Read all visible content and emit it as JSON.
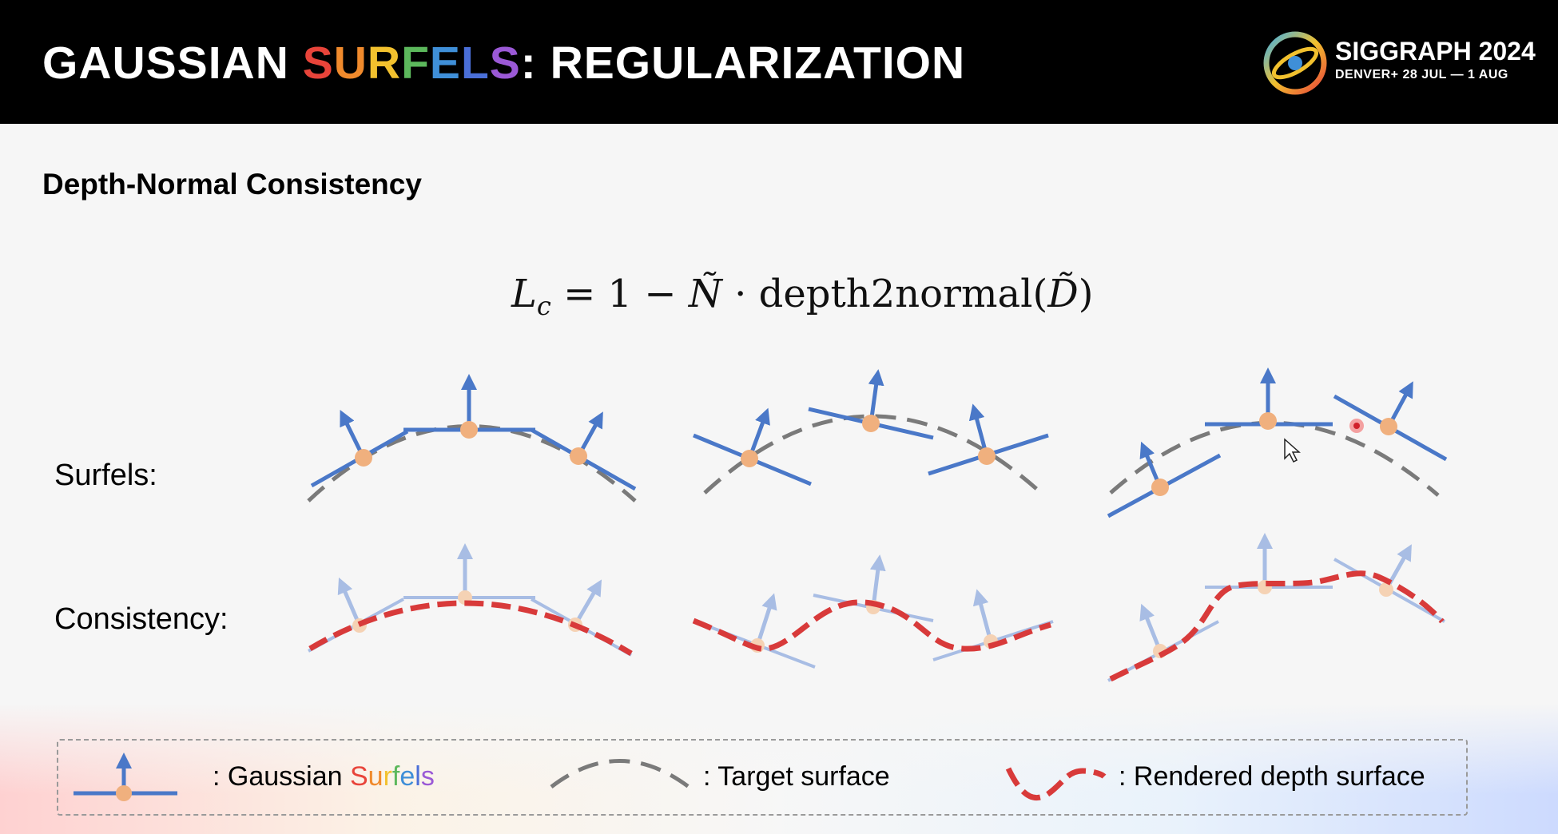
{
  "slide": {
    "title_prefix": "GAUSSIAN ",
    "title_highlight_letters": [
      "S",
      "U",
      "R",
      "F",
      "E",
      "L",
      "S"
    ],
    "title_suffix": ": REGULARIZATION",
    "rainbow_colors": [
      "#e8443a",
      "#f08a2c",
      "#f2c12e",
      "#5cb85c",
      "#3f8fd8",
      "#4a6fd8",
      "#9b59d6"
    ],
    "section_heading": "Depth-Normal Consistency"
  },
  "conference": {
    "name": "SIGGRAPH 2024",
    "dates": "DENVER+ 28 JUL — 1 AUG",
    "logo_icon": "siggraph-swirl-logo"
  },
  "formula": {
    "lhs": "L",
    "lhs_sub": "c",
    "equals": "=",
    "one": "1",
    "minus": "−",
    "normal": "Ñ",
    "dot": "·",
    "func": "depth2normal(",
    "depth": "D̃",
    "close": ")"
  },
  "rows": {
    "surfels_label": "Surfels:",
    "consistency_label": "Consistency:"
  },
  "legend": {
    "surfels_prefix": ": Gaussian ",
    "surfels_highlight_letters": [
      "S",
      "u",
      "r",
      "f",
      "e",
      "l",
      "s"
    ],
    "target_label": ": Target surface",
    "rendered_label": ": Rendered depth surface"
  },
  "colors": {
    "surfel_blue": "#4a78c8",
    "surfel_blue_faded": "#a8bde4",
    "surfel_dot": "#f0b07e",
    "target_gray": "#7a7a7a",
    "rendered_red": "#d83a3a"
  }
}
